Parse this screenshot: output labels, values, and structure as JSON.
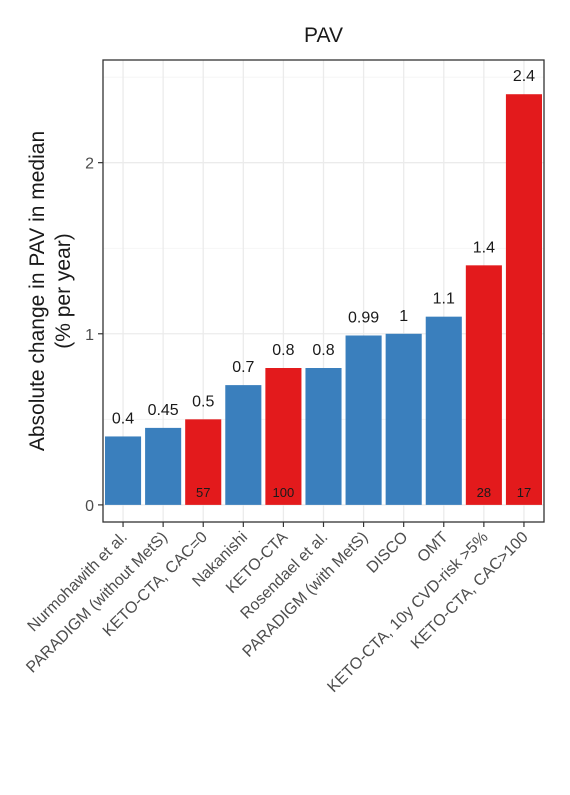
{
  "chart_data": {
    "type": "bar",
    "title": "PAV",
    "ylabel": [
      "Absolute change in PAV in median",
      "(% per year)"
    ],
    "xlabel": "",
    "ylim": [
      -0.1,
      2.6
    ],
    "yticks": [
      0,
      1,
      2
    ],
    "grid": true,
    "legend": "none",
    "categories": [
      "Nurmohawith et al.",
      "PARADIGM (without MetS)",
      "KETO-CTA, CAC=0",
      "Nakanishi",
      "KETO-CTA",
      "Rosendael et al.",
      "PARADIGM (with MetS)",
      "DISCO",
      "OMT",
      "KETO-CTA, 10y CVD-risk >5%",
      "KETO-CTA, CAC>100"
    ],
    "values": [
      0.4,
      0.45,
      0.5,
      0.7,
      0.8,
      0.8,
      0.99,
      1.0,
      1.1,
      1.4,
      2.4
    ],
    "value_labels": [
      "0.4",
      "0.45",
      "0.5",
      "0.7",
      "0.8",
      "0.8",
      "0.99",
      "1",
      "1.1",
      "1.4",
      "2.4"
    ],
    "bar_group": [
      "other",
      "other",
      "keto",
      "other",
      "keto",
      "other",
      "other",
      "other",
      "other",
      "keto",
      "keto"
    ],
    "n_labels": [
      "",
      "",
      "57",
      "",
      "100",
      "",
      "",
      "",
      "",
      "28",
      "17"
    ],
    "colors": {
      "other": "#3a7fbd",
      "keto": "#e31a1c",
      "grid": "#ebebeb",
      "panel_border": "#333333"
    }
  }
}
